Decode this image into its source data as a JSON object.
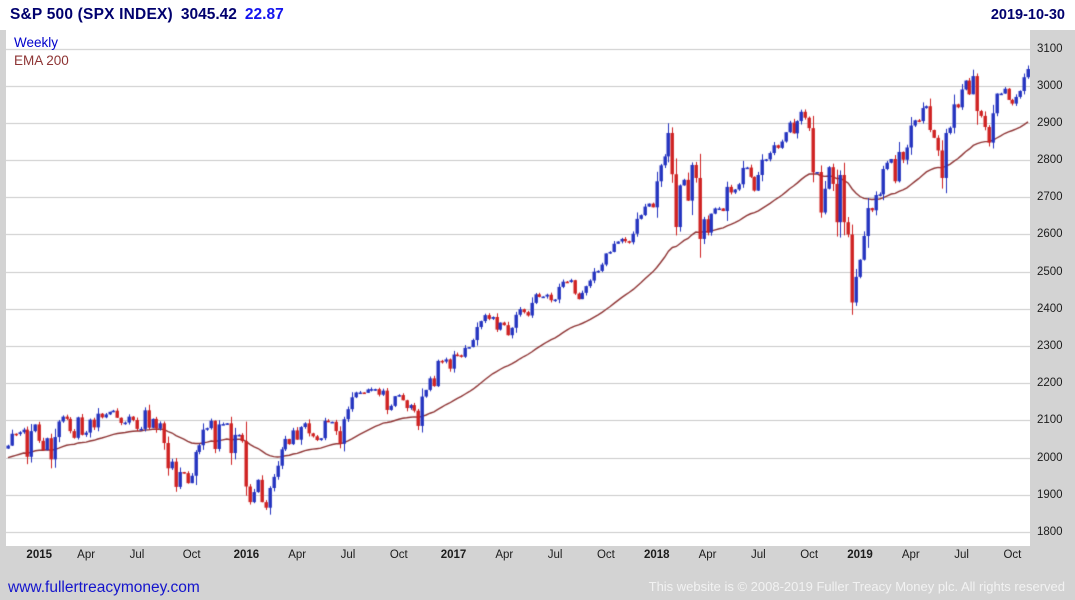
{
  "header": {
    "title": "S&P 500 (SPX INDEX)",
    "last_price": "3045.42",
    "change": "22.87",
    "date": "2019-10-30"
  },
  "legend": {
    "series_label": "Weekly",
    "ema_label": "EMA 200"
  },
  "footer": {
    "website": "www.fullertreacymoney.com",
    "copyright": "This website is © 2008-2019 Fuller Treacy Money plc. All rights reserved"
  },
  "colors": {
    "accent_navy": "#00006e",
    "change_blue": "#1414ee",
    "link_blue": "#1414cc",
    "background_gray": "#d3d3d3",
    "plot_white": "#ffffff"
  },
  "chart_data": {
    "type": "candlestick",
    "title": "S&P 500 (SPX INDEX)",
    "timeframe": "Weekly",
    "overlay": "EMA 200",
    "xlabel": "",
    "ylabel": "",
    "ylim": [
      1762,
      3150
    ],
    "grid": true,
    "y_ticks": [
      1800,
      1900,
      2000,
      2100,
      2200,
      2300,
      2400,
      2500,
      2600,
      2700,
      2800,
      2900,
      3000,
      3100
    ],
    "x_ticks": [
      {
        "label": "2015",
        "week": 8,
        "bold": true
      },
      {
        "label": "Apr",
        "week": 20
      },
      {
        "label": "Jul",
        "week": 33
      },
      {
        "label": "Oct",
        "week": 47
      },
      {
        "label": "2016",
        "week": 61,
        "bold": true
      },
      {
        "label": "Apr",
        "week": 74
      },
      {
        "label": "Jul",
        "week": 87
      },
      {
        "label": "Oct",
        "week": 100
      },
      {
        "label": "2017",
        "week": 114,
        "bold": true
      },
      {
        "label": "Apr",
        "week": 127
      },
      {
        "label": "Jul",
        "week": 140
      },
      {
        "label": "Oct",
        "week": 153
      },
      {
        "label": "2018",
        "week": 166,
        "bold": true
      },
      {
        "label": "Apr",
        "week": 179
      },
      {
        "label": "Jul",
        "week": 192
      },
      {
        "label": "Oct",
        "week": 205
      },
      {
        "label": "2019",
        "week": 218,
        "bold": true
      },
      {
        "label": "Apr",
        "week": 231
      },
      {
        "label": "Jul",
        "week": 244
      },
      {
        "label": "Oct",
        "week": 257
      }
    ],
    "weekly_closes": [
      2032,
      2064,
      2063,
      2068,
      2075,
      2002,
      2071,
      2089,
      2045,
      2020,
      2052,
      1995,
      2055,
      2097,
      2110,
      2104,
      2071,
      2053,
      2108,
      2061,
      2067,
      2102,
      2081,
      2118,
      2108,
      2116,
      2123,
      2126,
      2107,
      2093,
      2094,
      2110,
      2101,
      2077,
      2077,
      2127,
      2080,
      2104,
      2078,
      2092,
      2039,
      1971,
      1989,
      1921,
      1961,
      1958,
      1931,
      1951,
      2015,
      2033,
      2075,
      2079,
      2099,
      2023,
      2089,
      2090,
      2092,
      2012,
      2061,
      2061,
      2044,
      1922,
      1880,
      1907,
      1940,
      1880,
      1865,
      1918,
      1948,
      1978,
      2022,
      2050,
      2036,
      2073,
      2048,
      2082,
      2092,
      2065,
      2057,
      2047,
      2052,
      2099,
      2096,
      2096,
      2071,
      2037,
      2103,
      2130,
      2162,
      2175,
      2175,
      2174,
      2183,
      2184,
      2184,
      2169,
      2180,
      2128,
      2139,
      2165,
      2168,
      2154,
      2133,
      2141,
      2126,
      2085,
      2164,
      2182,
      2213,
      2192,
      2260,
      2258,
      2264,
      2239,
      2277,
      2275,
      2271,
      2295,
      2297,
      2316,
      2351,
      2367,
      2383,
      2373,
      2378,
      2344,
      2363,
      2356,
      2329,
      2349,
      2384,
      2399,
      2391,
      2382,
      2416,
      2439,
      2432,
      2433,
      2438,
      2423,
      2425,
      2459,
      2473,
      2472,
      2477,
      2441,
      2426,
      2443,
      2461,
      2476,
      2500,
      2502,
      2519,
      2549,
      2553,
      2575,
      2581,
      2588,
      2582,
      2579,
      2602,
      2642,
      2652,
      2675,
      2683,
      2673,
      2743,
      2786,
      2810,
      2873,
      2762,
      2620,
      2732,
      2747,
      2691,
      2787,
      2752,
      2588,
      2641,
      2605,
      2656,
      2670,
      2670,
      2663,
      2728,
      2713,
      2721,
      2735,
      2779,
      2780,
      2755,
      2718,
      2760,
      2801,
      2802,
      2819,
      2840,
      2833,
      2850,
      2875,
      2901,
      2872,
      2905,
      2930,
      2914,
      2886,
      2767,
      2768,
      2659,
      2723,
      2781,
      2736,
      2633,
      2760,
      2633,
      2600,
      2417,
      2486,
      2532,
      2596,
      2671,
      2665,
      2706,
      2708,
      2776,
      2793,
      2803,
      2743,
      2822,
      2801,
      2834,
      2893,
      2907,
      2905,
      2940,
      2945,
      2881,
      2860,
      2826,
      2752,
      2873,
      2887,
      2950,
      2942,
      2990,
      3014,
      2977,
      3026,
      2932,
      2919,
      2889,
      2847,
      2926,
      2979,
      2979,
      2992,
      2962,
      2952,
      2970,
      2986,
      3023,
      3045
    ],
    "ema_period": 40,
    "ema_seed": 1998,
    "up_color": "#2433c0",
    "down_color": "#cf2121",
    "ema_color": "#8e3434",
    "grid_color": "#c9c9c9"
  }
}
